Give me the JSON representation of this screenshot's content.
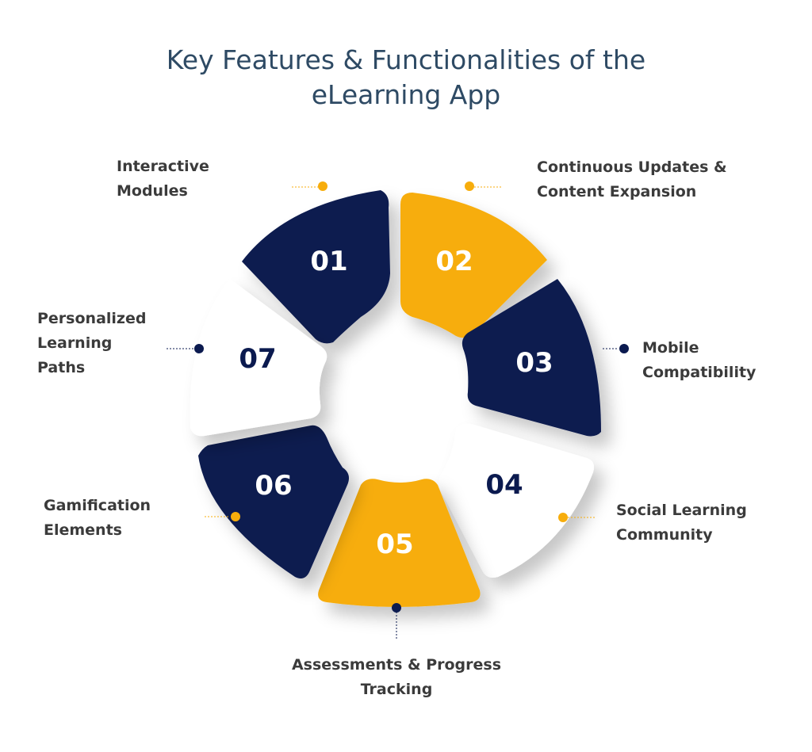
{
  "title": {
    "line1": "Key Features & Functionalities of the",
    "line2": "eLearning App"
  },
  "colors": {
    "navy": "#0b1a4f",
    "gold": "#f7ad0c",
    "white_segment": "#ffffff",
    "title": "#2e4a64",
    "label": "#3b3b3b"
  },
  "segments": [
    {
      "number": "01",
      "label_lines": [
        "Interactive",
        "Modules"
      ],
      "color": "navy"
    },
    {
      "number": "02",
      "label_lines": [
        "Continuous Updates &",
        "Content Expansion"
      ],
      "color": "gold"
    },
    {
      "number": "03",
      "label_lines": [
        "Mobile",
        "Compatibility"
      ],
      "color": "navy"
    },
    {
      "number": "04",
      "label_lines": [
        "Social Learning",
        "Community"
      ],
      "color": "white"
    },
    {
      "number": "05",
      "label_lines": [
        "Assessments & Progress",
        "Tracking"
      ],
      "color": "gold"
    },
    {
      "number": "06",
      "label_lines": [
        "Gamification",
        "Elements"
      ],
      "color": "navy"
    },
    {
      "number": "07",
      "label_lines": [
        "Personalized",
        "Learning",
        "Paths"
      ],
      "color": "white"
    }
  ]
}
